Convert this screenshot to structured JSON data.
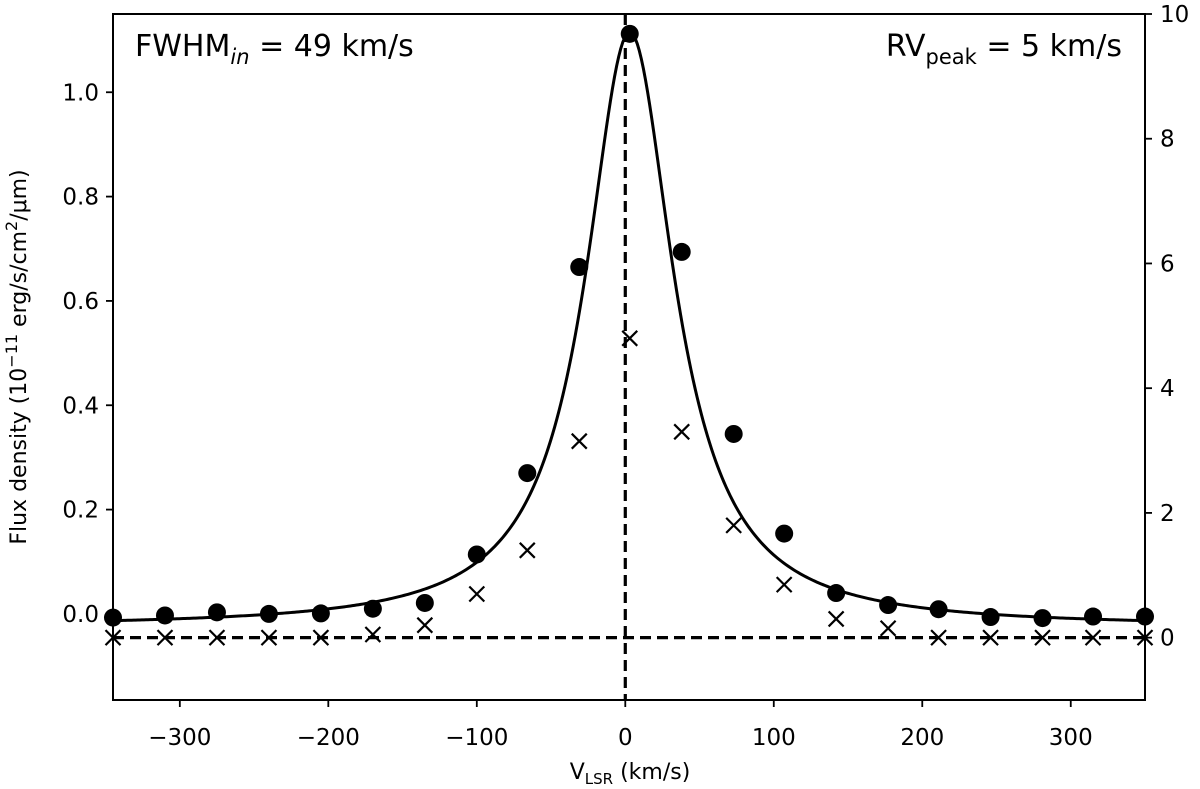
{
  "chart_data": {
    "type": "scatter",
    "annotation_left": {
      "base": "FWHM",
      "sub": "in",
      "rest": " = 49 km/s"
    },
    "annotation_right": {
      "base": "RV",
      "sub": "peak",
      "rest": " = 5 km/s"
    },
    "xlabel": {
      "base": "V",
      "sub": "LSR",
      "rest": " (km/s)"
    },
    "ylabel": {
      "pre": "Flux density (10",
      "exp": "−11",
      "mid": " erg/s/cm",
      "exp2": "2",
      "post": "/μm)"
    },
    "xlim": [
      -345,
      350
    ],
    "ylim_left": [
      -0.165,
      1.15
    ],
    "ylim_right": [
      -1.0,
      10.0
    ],
    "x_ticks": [
      -300,
      -200,
      -100,
      0,
      100,
      200,
      300
    ],
    "x_tick_labels": [
      "−300",
      "−200",
      "−100",
      "0",
      "100",
      "200",
      "300"
    ],
    "y_left_ticks": [
      0.0,
      0.2,
      0.4,
      0.6,
      0.8,
      1.0
    ],
    "y_left_tick_labels": [
      "0.0",
      "0.2",
      "0.4",
      "0.6",
      "0.8",
      "1.0"
    ],
    "y_right_ticks": [
      0,
      2,
      4,
      6,
      8,
      10
    ],
    "y_right_tick_labels": [
      "0",
      "2",
      "4",
      "6",
      "8",
      "10"
    ],
    "fit_curve": {
      "model": "lorentzian",
      "center": 3,
      "gamma": 36,
      "amplitude": 1.14,
      "offset": -0.025
    },
    "vertical_reference_x": 0,
    "horizontal_reference_right_y": 0,
    "series": [
      {
        "name": "flux density (filled circles, left axis)",
        "x": [
          -345,
          -310,
          -275,
          -240,
          -205,
          -170,
          -135,
          -100,
          -66,
          -31,
          3,
          38,
          73,
          107,
          142,
          177,
          211,
          246,
          281,
          315,
          350
        ],
        "y": [
          -0.007,
          -0.003,
          0.003,
          0.0,
          0.001,
          0.01,
          0.021,
          0.114,
          0.27,
          0.665,
          1.112,
          0.694,
          0.345,
          0.154,
          0.04,
          0.017,
          0.009,
          -0.006,
          -0.008,
          -0.005,
          -0.005
        ]
      },
      {
        "name": "crosses (right axis)",
        "x": [
          -345,
          -310,
          -275,
          -240,
          -205,
          -170,
          -135,
          -100,
          -66,
          -31,
          3,
          38,
          73,
          107,
          142,
          177,
          211,
          246,
          281,
          315,
          350
        ],
        "y": [
          0.0,
          0.0,
          0.0,
          0.0,
          0.0,
          0.05,
          0.2,
          0.7,
          1.4,
          3.15,
          4.8,
          3.3,
          1.8,
          0.85,
          0.3,
          0.15,
          0.0,
          0.0,
          0.0,
          0.0,
          0.0
        ]
      }
    ]
  }
}
